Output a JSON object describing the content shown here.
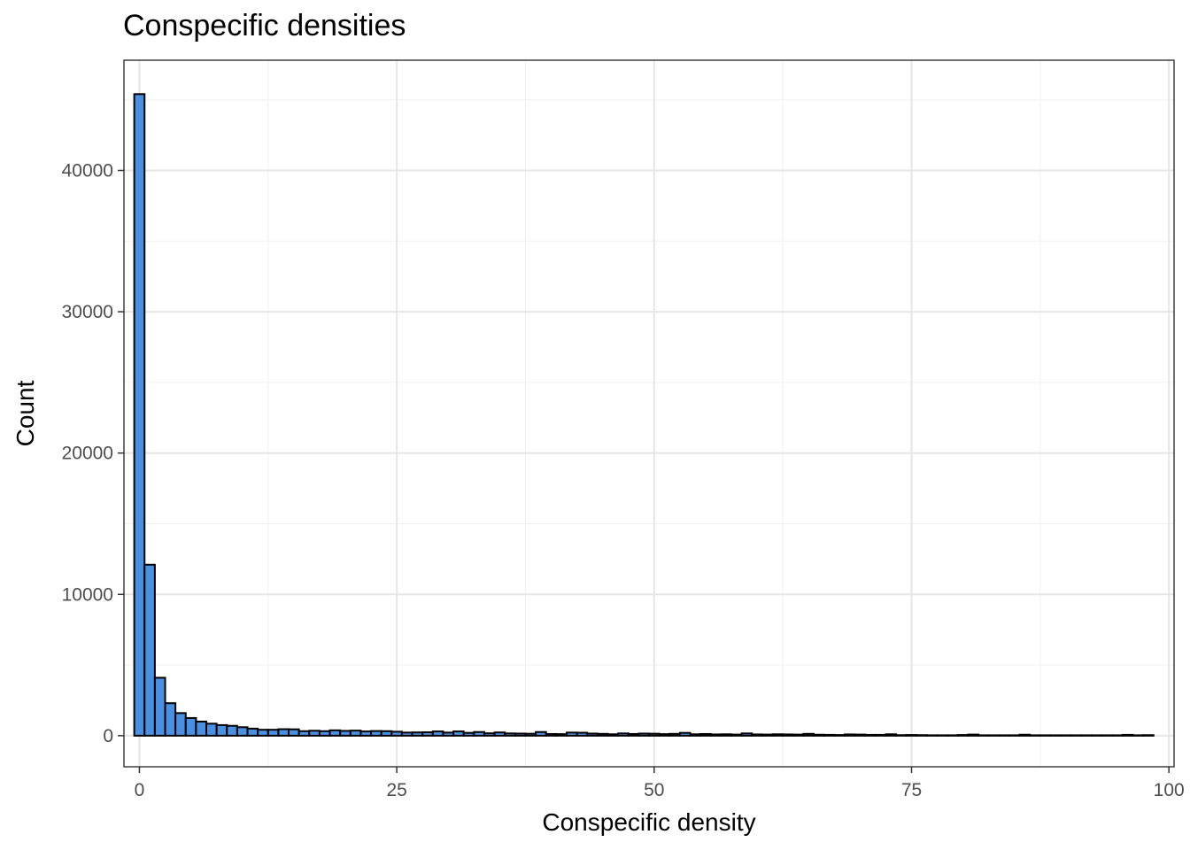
{
  "chart_data": {
    "type": "bar",
    "title": "Conspecific densities",
    "xlabel": "Conspecific density",
    "ylabel": "Count",
    "xlim": [
      -1.5,
      100.5
    ],
    "ylim": [
      -2200,
      47800
    ],
    "x_ticks": [
      0,
      25,
      50,
      75,
      100
    ],
    "y_ticks": [
      0,
      10000,
      20000,
      30000,
      40000
    ],
    "x_tick_labels": [
      "0",
      "25",
      "50",
      "75",
      "100"
    ],
    "y_tick_labels": [
      "0",
      "10000",
      "20000",
      "30000",
      "40000"
    ],
    "grid": true,
    "fill_color": "#4a90e2",
    "edge_color": "#000000",
    "bin_width": 1,
    "bins_start": -0.5,
    "values": [
      45400,
      12100,
      4100,
      2300,
      1600,
      1250,
      1000,
      850,
      750,
      700,
      600,
      500,
      420,
      420,
      460,
      450,
      320,
      350,
      320,
      380,
      340,
      360,
      300,
      330,
      320,
      280,
      220,
      230,
      240,
      300,
      220,
      300,
      200,
      260,
      170,
      230,
      160,
      150,
      140,
      260,
      120,
      110,
      220,
      210,
      150,
      130,
      100,
      160,
      120,
      150,
      140,
      110,
      130,
      200,
      100,
      120,
      90,
      100,
      80,
      160,
      90,
      80,
      100,
      90,
      80,
      130,
      70,
      60,
      50,
      90,
      80,
      60,
      60,
      100,
      40,
      50,
      40,
      30,
      30,
      30,
      50,
      80,
      30,
      30,
      30,
      30,
      70,
      30,
      30,
      30,
      30,
      30,
      30,
      30,
      30,
      30,
      60,
      30,
      40
    ]
  }
}
